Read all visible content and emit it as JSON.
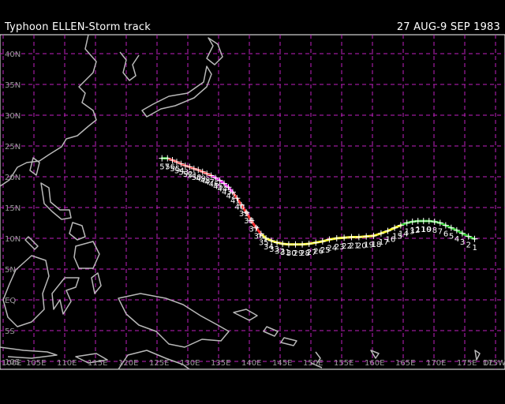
{
  "header": {
    "title": "Typhoon  ELLEN-Storm track",
    "dates": "27 AUG-9 SEP 1983"
  },
  "map": {
    "lon_range": [
      100,
      180
    ],
    "lat_range": [
      -10,
      42
    ],
    "lat_ticks": [
      {
        "lat": 40,
        "label": "40N"
      },
      {
        "lat": 35,
        "label": "35N"
      },
      {
        "lat": 30,
        "label": "30N"
      },
      {
        "lat": 25,
        "label": "25N"
      },
      {
        "lat": 20,
        "label": "20N"
      },
      {
        "lat": 15,
        "label": "15N"
      },
      {
        "lat": 10,
        "label": "10N"
      },
      {
        "lat": 5,
        "label": "5N"
      },
      {
        "lat": 0,
        "label": "EQ"
      },
      {
        "lat": -5,
        "label": "5S"
      },
      {
        "lat": -10,
        "label": "10S"
      }
    ],
    "lon_ticks": [
      {
        "lon": 100,
        "label": "100E"
      },
      {
        "lon": 105,
        "label": "105E"
      },
      {
        "lon": 110,
        "label": "110E"
      },
      {
        "lon": 115,
        "label": "115E"
      },
      {
        "lon": 120,
        "label": "120E"
      },
      {
        "lon": 125,
        "label": "125E"
      },
      {
        "lon": 130,
        "label": "130E"
      },
      {
        "lon": 135,
        "label": "135E"
      },
      {
        "lon": 140,
        "label": "140E"
      },
      {
        "lon": 145,
        "label": "145E"
      },
      {
        "lon": 150,
        "label": "150E"
      },
      {
        "lon": 155,
        "label": "155E"
      },
      {
        "lon": 160,
        "label": "160E"
      },
      {
        "lon": 165,
        "label": "165E"
      },
      {
        "lon": 170,
        "label": "170E"
      },
      {
        "lon": 175,
        "label": "175E"
      },
      {
        "lon": 180,
        "label": "DL"
      },
      {
        "lon": 185,
        "label": "175W"
      }
    ],
    "colors": {
      "background": "#000000",
      "grid": "#c020c0",
      "coast": "#b8b8b8",
      "depression": "#30d030",
      "storm": "#ffff30",
      "typhoon": "#ff3030",
      "super_typhoon": "#ff40ff"
    }
  },
  "chart_data": {
    "type": "scatter",
    "x": [
      176.6,
      175.6,
      174.6,
      173.7,
      172.8,
      171.9,
      171.0,
      170.1,
      169.2,
      168.3,
      167.4,
      166.5,
      165.6,
      164.6,
      163.6,
      162.5,
      161.4,
      160.2,
      159.0,
      157.8,
      156.6,
      155.4,
      154.2,
      153.0,
      151.9,
      150.8,
      149.7,
      148.6,
      147.5,
      146.4,
      145.4,
      144.5,
      143.6,
      142.7,
      141.9,
      141.1,
      140.3,
      139.5,
      138.7,
      138.0,
      137.3,
      136.6,
      135.9,
      135.2,
      134.5,
      133.8,
      133.1,
      132.4,
      131.7,
      131.0,
      130.3,
      129.6,
      128.9,
      128.2,
      127.5,
      126.7,
      125.8
    ],
    "y": [
      9.9,
      10.3,
      10.8,
      11.3,
      11.7,
      12.1,
      12.5,
      12.7,
      12.8,
      12.8,
      12.8,
      12.7,
      12.5,
      12.1,
      11.7,
      11.2,
      10.8,
      10.4,
      10.3,
      10.2,
      10.2,
      10.1,
      10.0,
      9.8,
      9.5,
      9.3,
      9.1,
      9.0,
      9.0,
      9.0,
      9.1,
      9.3,
      9.6,
      10.0,
      10.7,
      11.7,
      12.9,
      14.2,
      15.4,
      16.5,
      17.5,
      18.3,
      18.9,
      19.4,
      19.8,
      20.2,
      20.5,
      20.8,
      21.1,
      21.3,
      21.6,
      21.8,
      22.1,
      22.4,
      22.7,
      23.0,
      23.0
    ],
    "labels": [
      "1",
      "2",
      "3",
      "4",
      "5",
      "6",
      "7",
      "8",
      "9",
      "10",
      "11",
      "12",
      "13",
      "14",
      "15",
      "16",
      "17",
      "18",
      "19",
      "20",
      "21",
      "22",
      "23",
      "24",
      "25",
      "26",
      "27",
      "28",
      "29",
      "30",
      "31",
      "32",
      "33",
      "34",
      "35",
      "36",
      "37",
      "38",
      "39",
      "40",
      "41",
      "42",
      "43",
      "44",
      "45",
      "46",
      "47",
      "48",
      "49",
      "50",
      "51",
      "52",
      "53",
      "54",
      "55",
      "56",
      "57"
    ],
    "title": "Typhoon  ELLEN-Storm track",
    "xlim": [
      100,
      180
    ],
    "ylim": [
      -10,
      42
    ],
    "grid": true
  }
}
